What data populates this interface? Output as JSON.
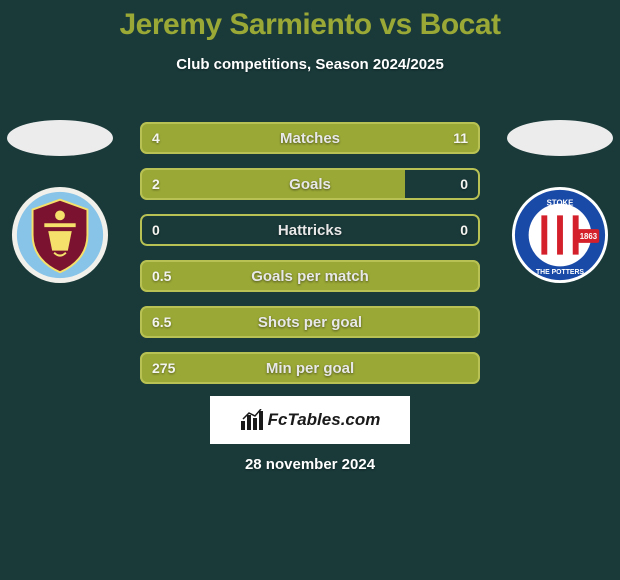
{
  "colors": {
    "background": "#1a3a3a",
    "title_color": "#9aa836",
    "subtitle_color": "#ffffff",
    "bar_fill": "#9aa836",
    "bar_border": "#b8c254",
    "oval_color": "#ececec",
    "value_text": "#f4f4f0",
    "label_text": "#e8e8e8"
  },
  "title": {
    "player1": "Jeremy Sarmiento",
    "vs": "vs",
    "player2": "Bocat"
  },
  "subtitle": "Club competitions, Season 2024/2025",
  "date": "28 november 2024",
  "watermark": "FcTables.com",
  "bars": [
    {
      "label": "Matches",
      "left_val": "4",
      "right_val": "11",
      "left_pct": 26.7,
      "right_pct": 73.3,
      "fill_full": true
    },
    {
      "label": "Goals",
      "left_val": "2",
      "right_val": "0",
      "left_pct": 78.0,
      "right_pct": 0,
      "fill_full": false
    },
    {
      "label": "Hattricks",
      "left_val": "0",
      "right_val": "0",
      "left_pct": 0,
      "right_pct": 0,
      "fill_full": false
    },
    {
      "label": "Goals per match",
      "left_val": "0.5",
      "right_val": "",
      "left_pct": 100,
      "right_pct": 0,
      "fill_full": true
    },
    {
      "label": "Shots per goal",
      "left_val": "6.5",
      "right_val": "",
      "left_pct": 100,
      "right_pct": 0,
      "fill_full": true
    },
    {
      "label": "Min per goal",
      "left_val": "275",
      "right_val": "",
      "left_pct": 100,
      "right_pct": 0,
      "fill_full": true
    }
  ],
  "clubs": {
    "left": {
      "name": "burnley-badge"
    },
    "right": {
      "name": "stoke-badge"
    }
  }
}
